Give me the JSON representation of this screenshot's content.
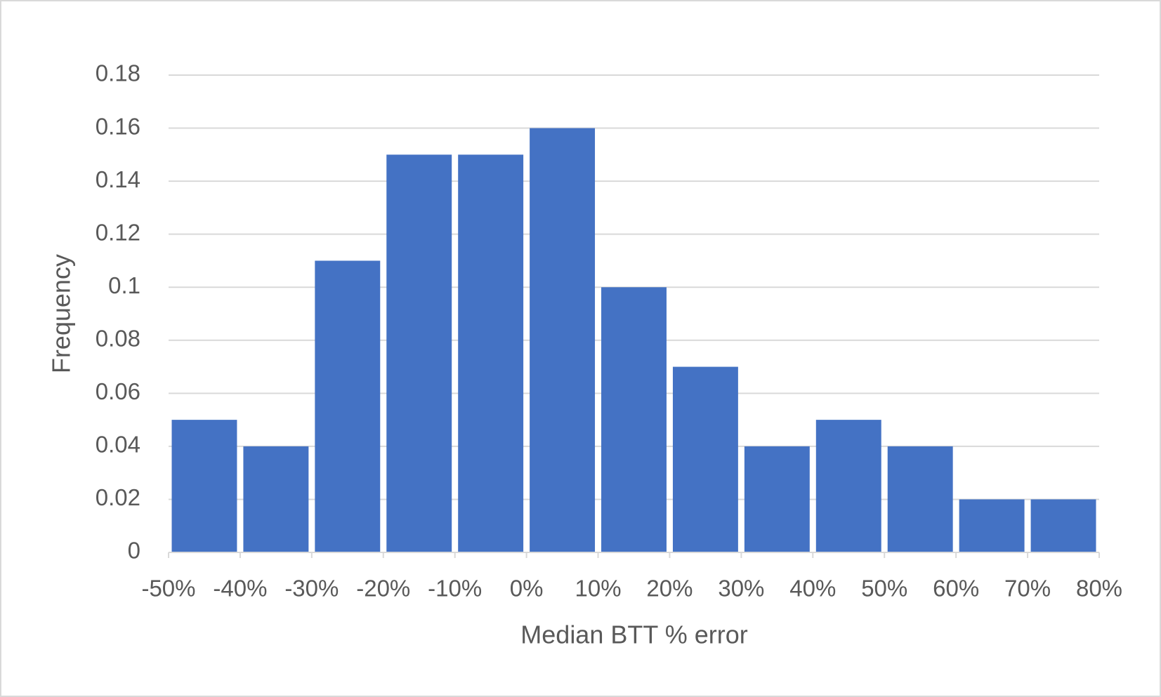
{
  "chart_data": {
    "type": "histogram",
    "xlabel": "Median BTT % error",
    "ylabel": "Frequency",
    "bins": [
      -50,
      -40,
      -30,
      -20,
      -10,
      0,
      10,
      20,
      30,
      40,
      50,
      60,
      70,
      80
    ],
    "counts": [
      0.05,
      0.04,
      0.11,
      0.15,
      0.15,
      0.16,
      0.1,
      0.07,
      0.04,
      0.05,
      0.04,
      0.02,
      0.02
    ],
    "color": "#4472c4",
    "xlim": [
      -50,
      80
    ],
    "xticks": [
      {
        "value": -50,
        "label": "-50%"
      },
      {
        "value": -40,
        "label": "-40%"
      },
      {
        "value": -30,
        "label": "-30%"
      },
      {
        "value": -20,
        "label": "-20%"
      },
      {
        "value": -10,
        "label": "-10%"
      },
      {
        "value": 0,
        "label": "0%"
      },
      {
        "value": 10,
        "label": "10%"
      },
      {
        "value": 20,
        "label": "20%"
      },
      {
        "value": 30,
        "label": "30%"
      },
      {
        "value": 40,
        "label": "40%"
      },
      {
        "value": 50,
        "label": "50%"
      },
      {
        "value": 60,
        "label": "60%"
      },
      {
        "value": 70,
        "label": "70%"
      },
      {
        "value": 80,
        "label": "80%"
      }
    ],
    "ylim": [
      0,
      0.18
    ],
    "yticks": [
      0,
      0.02,
      0.04,
      0.06,
      0.08,
      0.1,
      0.12,
      0.14,
      0.16,
      0.18
    ],
    "grid": true
  }
}
